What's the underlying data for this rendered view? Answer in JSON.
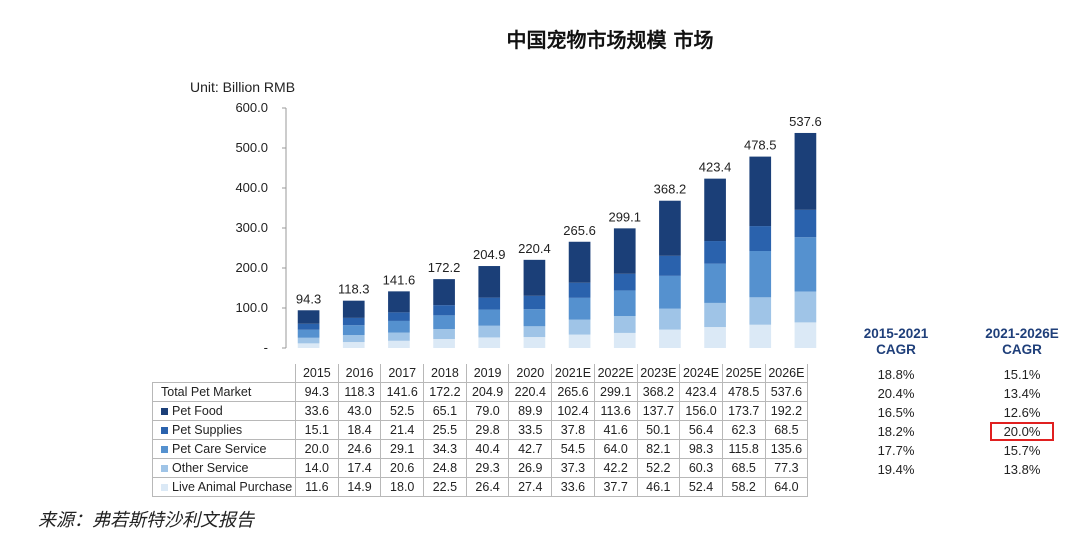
{
  "title": "中国宠物市场规模 市场",
  "unit_label": "Unit: Billion RMB",
  "source": "来源：弗若斯特沙利文报告",
  "colors": {
    "pet_food": "#1b3f78",
    "pet_supplies": "#2a62ad",
    "pet_care_service": "#5591cf",
    "other_service": "#9fc4e7",
    "live_animal_purchase": "#dbe9f6",
    "highlight": "#e02020"
  },
  "chart_data": {
    "type": "bar",
    "stacked": true,
    "categories": [
      "2015",
      "2016",
      "2017",
      "2018",
      "2019",
      "2020",
      "2021E",
      "2022E",
      "2023E",
      "2024E",
      "2025E",
      "2026E"
    ],
    "ylim": [
      0,
      600
    ],
    "yticks": [
      "-",
      "100.0",
      "200.0",
      "300.0",
      "400.0",
      "500.0",
      "600.0"
    ],
    "totals": {
      "name": "Total Pet Market",
      "values": [
        94.3,
        118.3,
        141.6,
        172.2,
        204.9,
        220.4,
        265.6,
        299.1,
        368.2,
        423.4,
        478.5,
        537.6
      ],
      "labels": [
        "94.3",
        "118.3",
        "141.6",
        "172.2",
        "204.9",
        "220.4",
        "265.6",
        "299.1",
        "368.2",
        "423.4",
        "478.5",
        "537.6"
      ]
    },
    "series": [
      {
        "name": "Live Animal Purchase",
        "key": "live_animal_purchase",
        "values": [
          11.6,
          14.9,
          18.0,
          22.5,
          26.4,
          27.4,
          33.6,
          37.7,
          46.1,
          52.4,
          58.2,
          64.0
        ],
        "labels": [
          "11.6",
          "14.9",
          "18.0",
          "22.5",
          "26.4",
          "27.4",
          "33.6",
          "37.7",
          "46.1",
          "52.4",
          "58.2",
          "64.0"
        ]
      },
      {
        "name": "Other Service",
        "key": "other_service",
        "values": [
          14.0,
          17.4,
          20.6,
          24.8,
          29.3,
          26.9,
          37.3,
          42.2,
          52.2,
          60.3,
          68.5,
          77.3
        ],
        "labels": [
          "14.0",
          "17.4",
          "20.6",
          "24.8",
          "29.3",
          "26.9",
          "37.3",
          "42.2",
          "52.2",
          "60.3",
          "68.5",
          "77.3"
        ]
      },
      {
        "name": "Pet Care Service",
        "key": "pet_care_service",
        "values": [
          20.0,
          24.6,
          29.1,
          34.3,
          40.4,
          42.7,
          54.5,
          64.0,
          82.1,
          98.3,
          115.8,
          135.6
        ],
        "labels": [
          "20.0",
          "24.6",
          "29.1",
          "34.3",
          "40.4",
          "42.7",
          "54.5",
          "64.0",
          "82.1",
          "98.3",
          "115.8",
          "135.6"
        ]
      },
      {
        "name": "Pet Supplies",
        "key": "pet_supplies",
        "values": [
          15.1,
          18.4,
          21.4,
          25.5,
          29.8,
          33.5,
          37.8,
          41.6,
          50.1,
          56.4,
          62.3,
          68.5
        ],
        "labels": [
          "15.1",
          "18.4",
          "21.4",
          "25.5",
          "29.8",
          "33.5",
          "37.8",
          "41.6",
          "50.1",
          "56.4",
          "62.3",
          "68.5"
        ]
      },
      {
        "name": "Pet Food",
        "key": "pet_food",
        "values": [
          33.6,
          43.0,
          52.5,
          65.1,
          79.0,
          89.9,
          102.4,
          113.6,
          137.7,
          156.0,
          173.7,
          192.2
        ],
        "labels": [
          "33.6",
          "43.0",
          "52.5",
          "65.1",
          "79.0",
          "89.9",
          "102.4",
          "113.6",
          "137.7",
          "156.0",
          "173.7",
          "192.2"
        ]
      }
    ]
  },
  "table_order": [
    "totals",
    "pet_food",
    "pet_supplies",
    "pet_care_service",
    "other_service",
    "live_animal_purchase"
  ],
  "cagr": {
    "col1_header_line1": "2015-2021",
    "col1_header_line2": "CAGR",
    "col2_header_line1": "2021-2026E",
    "col2_header_line2": "CAGR",
    "col1": [
      "18.8%",
      "20.4%",
      "16.5%",
      "18.2%",
      "17.7%",
      "19.4%"
    ],
    "col2": [
      "15.1%",
      "13.4%",
      "12.6%",
      "20.0%",
      "15.7%",
      "13.8%"
    ],
    "highlighted_row_col2": 3
  }
}
